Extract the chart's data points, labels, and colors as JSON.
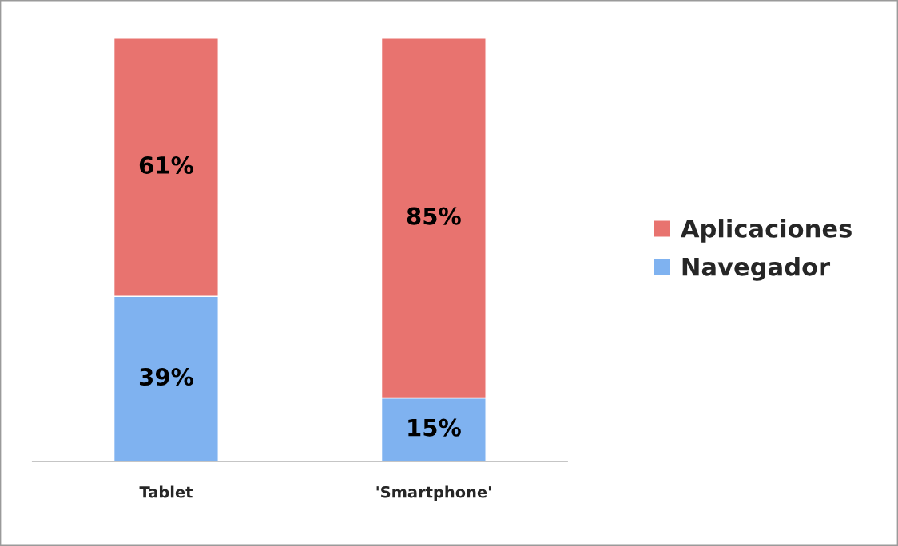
{
  "chart_data": {
    "type": "bar",
    "stacked": true,
    "categories": [
      "Tablet",
      "'Smartphone'"
    ],
    "series": [
      {
        "name": "Navegador",
        "color": "#7fb2f0",
        "values": [
          39,
          15
        ],
        "value_labels": [
          "39%",
          "15%"
        ]
      },
      {
        "name": "Aplicaciones",
        "color": "#e8736f",
        "values": [
          61,
          85
        ],
        "value_labels": [
          "61%",
          "85%"
        ]
      }
    ],
    "legend": "right"
  }
}
